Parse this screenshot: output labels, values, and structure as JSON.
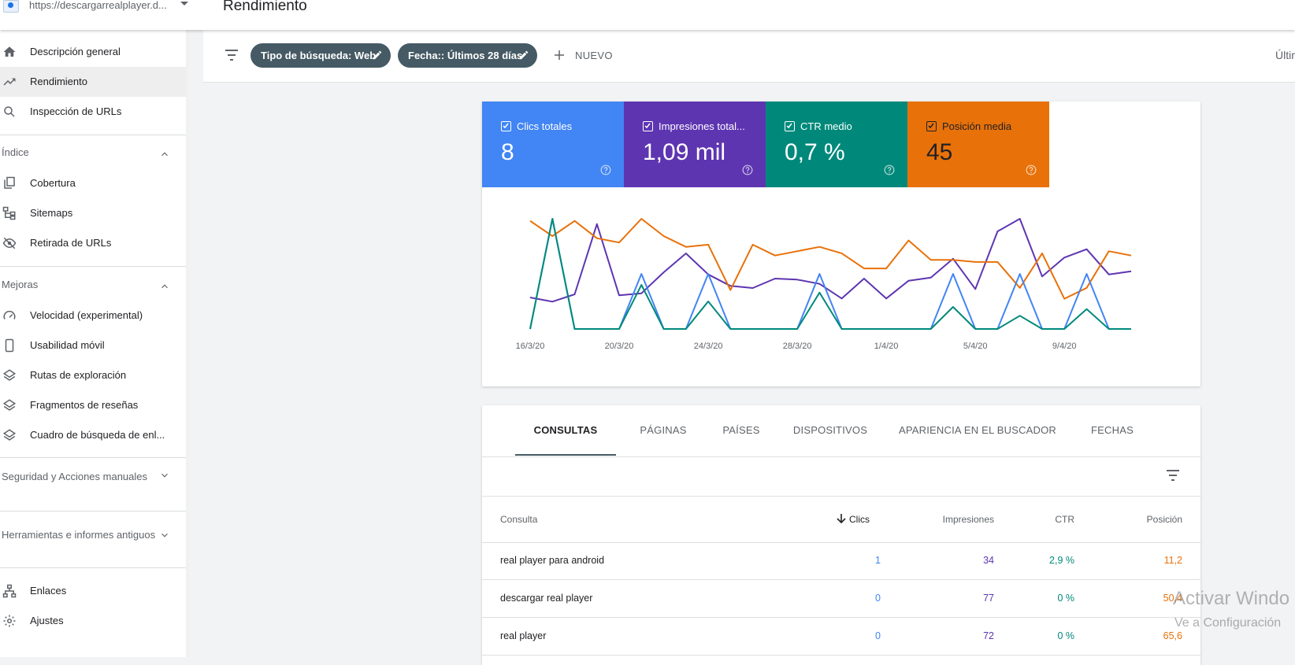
{
  "header": {
    "property_url": "https://descargarrealplayer.d...",
    "page_title": "Rendimiento"
  },
  "sidebar": {
    "top_items": [
      {
        "label": "Descripción general",
        "icon": "home-icon"
      },
      {
        "label": "Rendimiento",
        "icon": "trending-up-icon"
      },
      {
        "label": "Inspección de URLs",
        "icon": "search-icon"
      }
    ],
    "sections": [
      {
        "title": "Índice",
        "expanded": true,
        "items": [
          {
            "label": "Cobertura",
            "icon": "copy-icon"
          },
          {
            "label": "Sitemaps",
            "icon": "sitemap-icon"
          },
          {
            "label": "Retirada de URLs",
            "icon": "visibility-off-icon"
          }
        ]
      },
      {
        "title": "Mejoras",
        "expanded": true,
        "items": [
          {
            "label": "Velocidad (experimental)",
            "icon": "speed-icon"
          },
          {
            "label": "Usabilidad móvil",
            "icon": "phone-icon"
          },
          {
            "label": "Rutas de exploración",
            "icon": "layers-icon"
          },
          {
            "label": "Fragmentos de reseñas",
            "icon": "layers-icon"
          },
          {
            "label": "Cuadro de búsqueda de enl...",
            "icon": "layers-icon"
          }
        ]
      },
      {
        "title": "Seguridad y Acciones manuales",
        "expanded": false
      },
      {
        "title": "Herramientas e informes antiguos",
        "expanded": false
      }
    ],
    "bottom_items": [
      {
        "label": "Enlaces",
        "icon": "links-icon"
      },
      {
        "label": "Ajustes",
        "icon": "settings-icon"
      }
    ]
  },
  "filters": {
    "chips": [
      "Tipo de búsqueda: Web",
      "Fecha:: Últimos 28 días"
    ],
    "new_label": "NUEVO",
    "last_update": "Últim"
  },
  "metrics": [
    {
      "label": "Clics totales",
      "value": "8",
      "color": "#4285f4"
    },
    {
      "label": "Impresiones total...",
      "value": "1,09 mil",
      "color": "#5e35b1"
    },
    {
      "label": "CTR medio",
      "value": "0,7 %",
      "color": "#00897b"
    },
    {
      "label": "Posición media",
      "value": "45",
      "color": "#e8710a"
    }
  ],
  "chart_data": {
    "type": "line",
    "x_tick_labels": [
      "16/3/20",
      "20/3/20",
      "24/3/20",
      "28/3/20",
      "1/4/20",
      "5/4/20",
      "9/4/20"
    ],
    "x_tick_indices": [
      0,
      4,
      8,
      12,
      16,
      20,
      24
    ],
    "num_points": 28,
    "y_axes_shown": false,
    "series": [
      {
        "name": "Impresiones",
        "color": "#5e35b1",
        "values": [
          30,
          26,
          33,
          100,
          32,
          34,
          54,
          72,
          52,
          41,
          39,
          48,
          47,
          43,
          29,
          48,
          29,
          46,
          49,
          67,
          38,
          93,
          105,
          50,
          68,
          76,
          52,
          55
        ]
      },
      {
        "name": "Posición",
        "color": "#e8710a",
        "values": [
          50,
          43,
          50,
          42,
          40,
          51,
          43,
          38,
          39,
          18,
          39,
          34,
          36,
          38,
          35,
          28,
          28,
          41,
          32,
          32,
          31,
          31,
          19,
          35,
          14,
          19,
          36,
          34
        ]
      },
      {
        "name": "Clics",
        "color": "#4285f4",
        "values": [
          0,
          1,
          0,
          0,
          0,
          0.5,
          0,
          0,
          0.5,
          0,
          0,
          0,
          0,
          0.5,
          0,
          0,
          0,
          0,
          0,
          0.5,
          0,
          0,
          0.5,
          0,
          0,
          0.5,
          0,
          0
        ]
      },
      {
        "name": "CTR",
        "color": "#00897b",
        "values": [
          0,
          100,
          0,
          0,
          0,
          40,
          0,
          0,
          25,
          0,
          0,
          0,
          0,
          33,
          0,
          0,
          0,
          0,
          0,
          20,
          0,
          0,
          12,
          0,
          0,
          18,
          0,
          0
        ]
      }
    ]
  },
  "tabs": [
    "CONSULTAS",
    "PÁGINAS",
    "PAÍSES",
    "DISPOSITIVOS",
    "APARIENCIA EN EL BUSCADOR",
    "FECHAS"
  ],
  "table": {
    "headers": {
      "query": "Consulta",
      "clicks": "Clics",
      "impressions": "Impresiones",
      "ctr": "CTR",
      "position": "Posición"
    },
    "rows": [
      {
        "query": "real player para android",
        "clicks": "1",
        "impressions": "34",
        "ctr": "2,9 %",
        "position": "11,2"
      },
      {
        "query": "descargar real player",
        "clicks": "0",
        "impressions": "77",
        "ctr": "0 %",
        "position": "50,4"
      },
      {
        "query": "real player",
        "clicks": "0",
        "impressions": "72",
        "ctr": "0 %",
        "position": "65,6"
      }
    ]
  },
  "watermark": {
    "line1": "Activar Windo",
    "line2": "Ve a Configuración"
  }
}
